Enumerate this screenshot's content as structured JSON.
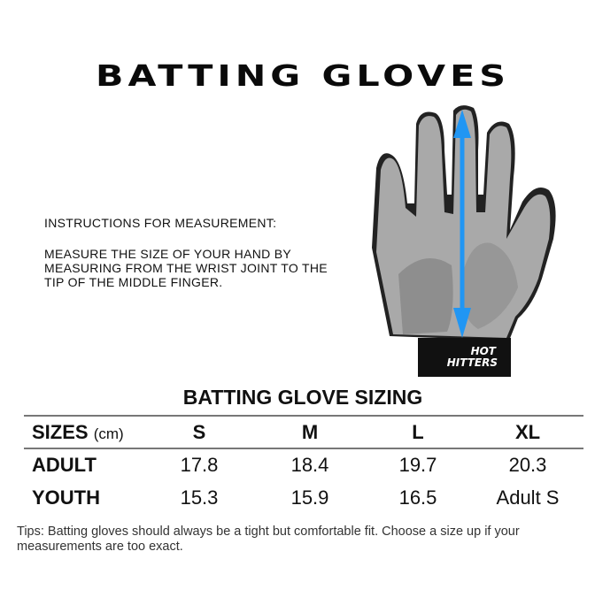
{
  "title": "BATTING GLOVES",
  "instructions": {
    "heading": "INSTRUCTIONS FOR MEASUREMENT:",
    "body": "MEASURE THE SIZE OF YOUR HAND BY MEASURING FROM THE WRIST JOINT TO THE TIP OF THE MIDDLE FINGER."
  },
  "image": {
    "brand": "HOT HITTERS",
    "arrow_color": "#2196f3"
  },
  "sizing": {
    "title": "BATTING GLOVE SIZING",
    "header_label": "SIZES",
    "unit": "(cm)",
    "columns": [
      "S",
      "M",
      "L",
      "XL"
    ],
    "rows": [
      {
        "label": "ADULT",
        "values": [
          "17.8",
          "18.4",
          "19.7",
          "20.3"
        ]
      },
      {
        "label": "YOUTH",
        "values": [
          "15.3",
          "15.9",
          "16.5",
          "Adult S"
        ]
      }
    ]
  },
  "tips": "Tips: Batting gloves should always be a tight but comfortable fit. Choose a size up if your measurements are too exact."
}
